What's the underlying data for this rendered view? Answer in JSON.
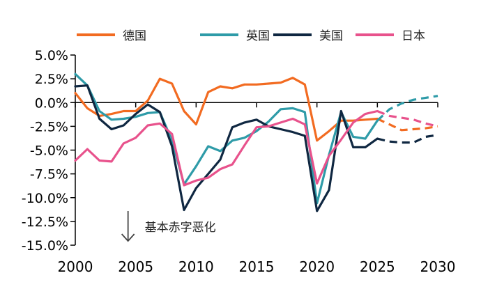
{
  "chart_data": {
    "type": "line",
    "title": "",
    "xlabel": "",
    "ylabel": "",
    "xlim": [
      2000,
      2030
    ],
    "ylim": [
      -15,
      5
    ],
    "x_ticks": [
      2000,
      2005,
      2010,
      2015,
      2020,
      2025,
      2030
    ],
    "x_tick_labels": [
      "2000",
      "2005",
      "2010",
      "2015",
      "2020",
      "2025",
      "2030"
    ],
    "y_ticks": [
      5,
      2.5,
      0,
      -2.5,
      -5,
      -7.5,
      -10,
      -12.5,
      -15
    ],
    "y_tick_labels": [
      "5.0%",
      "2.5%",
      "0.0%",
      "-2.5%",
      "-5.0%",
      "-7.5%",
      "-10.0%",
      "-12.5%",
      "-15.0%"
    ],
    "grid": false,
    "legend_position": "top",
    "forecast_from": 2025,
    "series": [
      {
        "name": "德国",
        "color": "#F26B21",
        "points": [
          [
            2000,
            1.0
          ],
          [
            2001,
            -0.6
          ],
          [
            2002,
            -1.4
          ],
          [
            2003,
            -1.2
          ],
          [
            2004,
            -0.9
          ],
          [
            2005,
            -0.9
          ],
          [
            2006,
            0.2
          ],
          [
            2007,
            2.5
          ],
          [
            2008,
            2.0
          ],
          [
            2009,
            -0.9
          ],
          [
            2010,
            -2.3
          ],
          [
            2011,
            1.1
          ],
          [
            2012,
            1.7
          ],
          [
            2013,
            1.5
          ],
          [
            2014,
            1.9
          ],
          [
            2015,
            1.9
          ],
          [
            2016,
            2.0
          ],
          [
            2017,
            2.1
          ],
          [
            2018,
            2.6
          ],
          [
            2019,
            1.9
          ],
          [
            2020,
            -4.0
          ],
          [
            2021,
            -3.0
          ],
          [
            2022,
            -1.9
          ],
          [
            2023,
            -1.9
          ],
          [
            2024,
            -1.8
          ],
          [
            2025,
            -1.7
          ],
          [
            2026,
            -2.3
          ],
          [
            2027,
            -2.9
          ],
          [
            2028,
            -2.8
          ],
          [
            2029,
            -2.7
          ],
          [
            2030,
            -2.5
          ]
        ]
      },
      {
        "name": "英国",
        "color": "#2E9BA8",
        "points": [
          [
            2000,
            3.0
          ],
          [
            2001,
            1.8
          ],
          [
            2002,
            -0.9
          ],
          [
            2003,
            -1.8
          ],
          [
            2004,
            -1.7
          ],
          [
            2005,
            -1.5
          ],
          [
            2006,
            -1.1
          ],
          [
            2007,
            -1.0
          ],
          [
            2008,
            -4.0
          ],
          [
            2009,
            -8.6
          ],
          [
            2010,
            -6.7
          ],
          [
            2011,
            -4.6
          ],
          [
            2012,
            -5.1
          ],
          [
            2013,
            -4.0
          ],
          [
            2014,
            -3.7
          ],
          [
            2015,
            -3.0
          ],
          [
            2016,
            -2.0
          ],
          [
            2017,
            -0.7
          ],
          [
            2018,
            -0.6
          ],
          [
            2019,
            -1.0
          ],
          [
            2020,
            -10.6
          ],
          [
            2021,
            -5.5
          ],
          [
            2022,
            -1.0
          ],
          [
            2023,
            -3.6
          ],
          [
            2024,
            -3.8
          ],
          [
            2025,
            -1.9
          ],
          [
            2026,
            -0.7
          ],
          [
            2027,
            -0.1
          ],
          [
            2028,
            0.3
          ],
          [
            2029,
            0.5
          ],
          [
            2030,
            0.7
          ]
        ]
      },
      {
        "name": "美国",
        "color": "#0F2741",
        "points": [
          [
            2000,
            1.7
          ],
          [
            2001,
            1.8
          ],
          [
            2002,
            -1.7
          ],
          [
            2003,
            -2.8
          ],
          [
            2004,
            -2.4
          ],
          [
            2005,
            -1.2
          ],
          [
            2006,
            -0.2
          ],
          [
            2007,
            -1.0
          ],
          [
            2008,
            -4.6
          ],
          [
            2009,
            -11.3
          ],
          [
            2010,
            -9.0
          ],
          [
            2011,
            -7.5
          ],
          [
            2012,
            -6.0
          ],
          [
            2013,
            -2.6
          ],
          [
            2014,
            -2.1
          ],
          [
            2015,
            -1.8
          ],
          [
            2016,
            -2.5
          ],
          [
            2017,
            -2.8
          ],
          [
            2018,
            -3.1
          ],
          [
            2019,
            -3.5
          ],
          [
            2020,
            -11.4
          ],
          [
            2021,
            -9.2
          ],
          [
            2022,
            -0.9
          ],
          [
            2023,
            -4.7
          ],
          [
            2024,
            -4.7
          ],
          [
            2025,
            -3.8
          ],
          [
            2026,
            -4.1
          ],
          [
            2027,
            -4.2
          ],
          [
            2028,
            -4.2
          ],
          [
            2029,
            -3.6
          ],
          [
            2030,
            -3.4
          ]
        ]
      },
      {
        "name": "日本",
        "color": "#E8528C",
        "points": [
          [
            2000,
            -6.1
          ],
          [
            2001,
            -4.9
          ],
          [
            2002,
            -6.1
          ],
          [
            2003,
            -6.2
          ],
          [
            2004,
            -4.3
          ],
          [
            2005,
            -3.7
          ],
          [
            2006,
            -2.4
          ],
          [
            2007,
            -2.2
          ],
          [
            2008,
            -3.3
          ],
          [
            2009,
            -8.7
          ],
          [
            2010,
            -8.2
          ],
          [
            2011,
            -7.9
          ],
          [
            2012,
            -7.0
          ],
          [
            2013,
            -6.5
          ],
          [
            2014,
            -4.5
          ],
          [
            2015,
            -2.6
          ],
          [
            2016,
            -2.5
          ],
          [
            2017,
            -2.1
          ],
          [
            2018,
            -1.7
          ],
          [
            2019,
            -2.3
          ],
          [
            2020,
            -8.5
          ],
          [
            2021,
            -5.6
          ],
          [
            2022,
            -3.9
          ],
          [
            2023,
            -2.1
          ],
          [
            2024,
            -1.2
          ],
          [
            2025,
            -0.9
          ],
          [
            2026,
            -1.4
          ],
          [
            2027,
            -1.6
          ],
          [
            2028,
            -1.8
          ],
          [
            2029,
            -2.2
          ],
          [
            2030,
            -2.5
          ]
        ]
      }
    ],
    "annotations": [
      {
        "text": "基本赤字恶化",
        "x": 2005,
        "y": -12.7,
        "marker": "down-arrow"
      }
    ]
  }
}
